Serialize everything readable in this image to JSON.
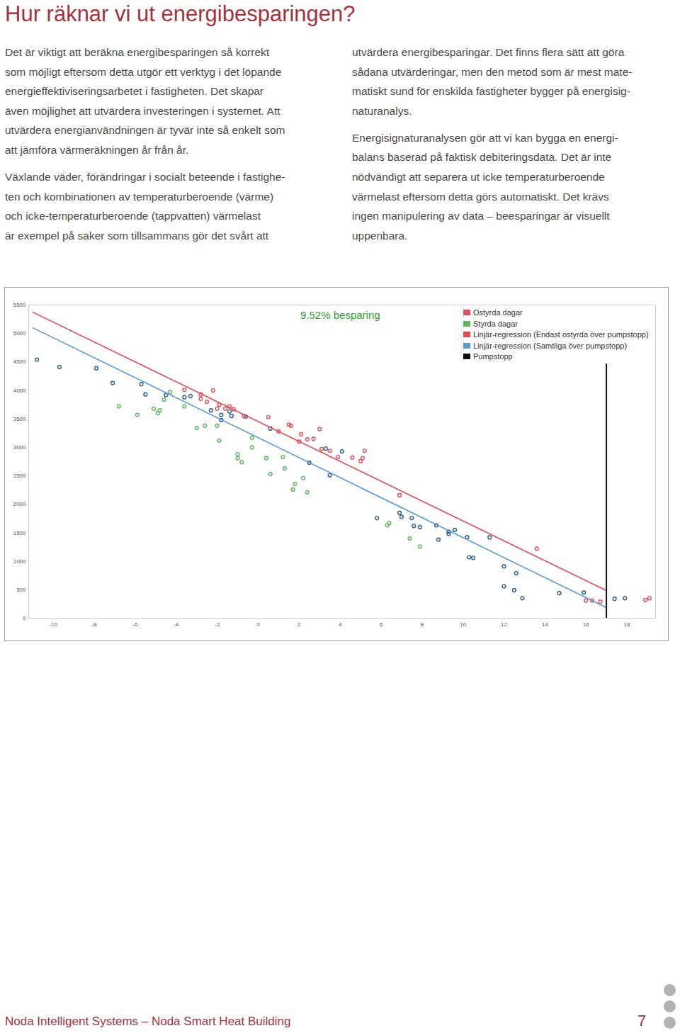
{
  "title": "Hur räknar vi ut energibesparingen?",
  "columns": [
    [
      [
        "Det är viktigt att beräkna energibesparingen så korrekt",
        "som möjligt eftersom detta utgör ett verktyg i det löpande",
        "energieffektiviseringsarbetet i fastigheten. Det skapar",
        "även möjlighet att utvärdera investeringen i systemet. Att",
        "utvärdera energianvändningen är tyvär inte så enkelt som",
        "att jämföra värmeräkningen år från år."
      ],
      [
        "Växlande väder, förändringar i socialt beteende i fastighe-",
        "ten och kombinationen av temperaturberoende (värme)",
        "och icke-temperaturberoende (tappvatten) värmelast",
        "är exempel på saker som tillsammans gör det svårt att"
      ]
    ],
    [
      [
        "utvärdera energibesparingar. Det finns flera sätt att göra",
        "sådana utvärderingar, men den metod som är mest mate-",
        "matiskt sund för enskilda fastigheter bygger på energisig-",
        "naturanalys."
      ],
      [
        "Energisignaturanalysen gör att vi kan bygga en energi-",
        "balans baserad på faktisk debiteringsdata. Det är inte",
        "nödvändigt att separera ut icke temperaturberoende",
        "värmelast eftersom detta görs automatiskt. Det krävs",
        "ingen manipulering av data – beesparingar är visuellt",
        "uppenbara."
      ]
    ]
  ],
  "chart_data": {
    "type": "scatter",
    "annotation": "9.52% besparing",
    "xlim": [
      -11.2,
      19.4
    ],
    "xticks": [
      -10,
      -8,
      -6,
      -4,
      -2,
      0,
      2,
      4,
      6,
      8,
      10,
      12,
      14,
      16,
      18
    ],
    "ylim": [
      0,
      5500
    ],
    "yticks": [
      0,
      500,
      1000,
      1500,
      2000,
      2500,
      3000,
      3500,
      4000,
      4500,
      5000,
      5500
    ],
    "grid": false,
    "legend": "top-right",
    "series": [
      {
        "name": null,
        "type": "scatter",
        "color": "#2b5f8e",
        "x": [
          -10.8,
          -9.7,
          -7.9,
          -7.1,
          -5.7,
          -5.5,
          -4.5,
          -3.6,
          -3.3,
          -2.3,
          -1.8,
          -1.8,
          -1.4,
          -1.3,
          -0.6,
          0.6,
          2.5,
          3.3,
          3.5,
          4.1,
          5.8,
          6.9,
          7.0,
          7.5,
          7.6,
          7.9,
          8.7,
          8.8,
          9.3,
          9.3,
          9.6,
          10.2,
          11.3,
          10.3,
          10.5,
          12.0,
          12.0,
          12.5,
          12.6,
          12.9,
          14.7,
          15.9,
          17.4,
          17.9
        ],
        "values": [
          4540,
          4410,
          4390,
          4130,
          4110,
          3930,
          3920,
          3880,
          3900,
          3650,
          3570,
          3480,
          3630,
          3550,
          3540,
          3330,
          2730,
          2980,
          2510,
          2930,
          1760,
          1850,
          1780,
          1760,
          1620,
          1600,
          1630,
          1380,
          1520,
          1480,
          1550,
          1420,
          1420,
          1070,
          1060,
          910,
          560,
          490,
          790,
          350,
          440,
          450,
          340,
          350
        ]
      },
      {
        "name": "Ostyrda dagar",
        "type": "scatter",
        "color": "#e0505c",
        "x": [
          -3.6,
          -2.8,
          -2.2,
          -2.8,
          -2.5,
          -1.9,
          -1.6,
          -2.0,
          -1.4,
          -1.2,
          -0.7,
          0.5,
          1.0,
          1.5,
          1.6,
          2.0,
          2.1,
          2.4,
          2.7,
          3.0,
          3.1,
          3.5,
          3.9,
          4.6,
          5.0,
          5.2,
          5.1,
          6.9,
          13.6,
          16.0,
          16.3,
          16.7,
          18.9,
          19.1
        ],
        "values": [
          4010,
          3930,
          4000,
          3850,
          3800,
          3750,
          3680,
          3680,
          3720,
          3670,
          3550,
          3530,
          3280,
          3400,
          3380,
          3100,
          3230,
          3140,
          3150,
          3320,
          2970,
          2940,
          2830,
          2820,
          2760,
          2940,
          2810,
          2160,
          1220,
          310,
          310,
          290,
          320,
          350
        ]
      },
      {
        "name": "Styrda dagar",
        "type": "scatter",
        "color": "#5cb85c",
        "x": [
          -6.8,
          -5.9,
          -5.1,
          -4.8,
          -4.9,
          -4.6,
          -4.3,
          -3.6,
          -3.0,
          -2.6,
          -2.0,
          -1.9,
          -1.0,
          -1.0,
          -0.8,
          -0.3,
          -0.3,
          0.4,
          0.6,
          1.2,
          1.3,
          1.7,
          1.8,
          2.2,
          2.4,
          6.3,
          6.4,
          7.4,
          7.9
        ],
        "values": [
          3720,
          3570,
          3680,
          3650,
          3600,
          3840,
          3970,
          3720,
          3340,
          3380,
          3380,
          3120,
          2880,
          2810,
          2740,
          3170,
          3000,
          2810,
          2530,
          2830,
          2630,
          2260,
          2360,
          2460,
          2210,
          1630,
          1670,
          1400,
          1260
        ]
      },
      {
        "name": "Linjär-regression (Endast ostyrda över pumpstopp)",
        "type": "line",
        "color": "#e8474f",
        "x": [
          -11,
          17
        ],
        "values": [
          5374,
          486
        ]
      },
      {
        "name": "Linjär-regression (Samtliga över pumpstopp)",
        "type": "line",
        "color": "#5b9bd5",
        "x": [
          -11,
          17
        ],
        "values": [
          5100,
          187
        ]
      },
      {
        "name": "Pumpstopp",
        "type": "line",
        "color": "#111111",
        "x": [
          17,
          17
        ],
        "values": [
          0,
          4460
        ]
      }
    ]
  },
  "footer": {
    "text": "Noda Intelligent Systems – Noda Smart Heat Building",
    "page": 7
  }
}
